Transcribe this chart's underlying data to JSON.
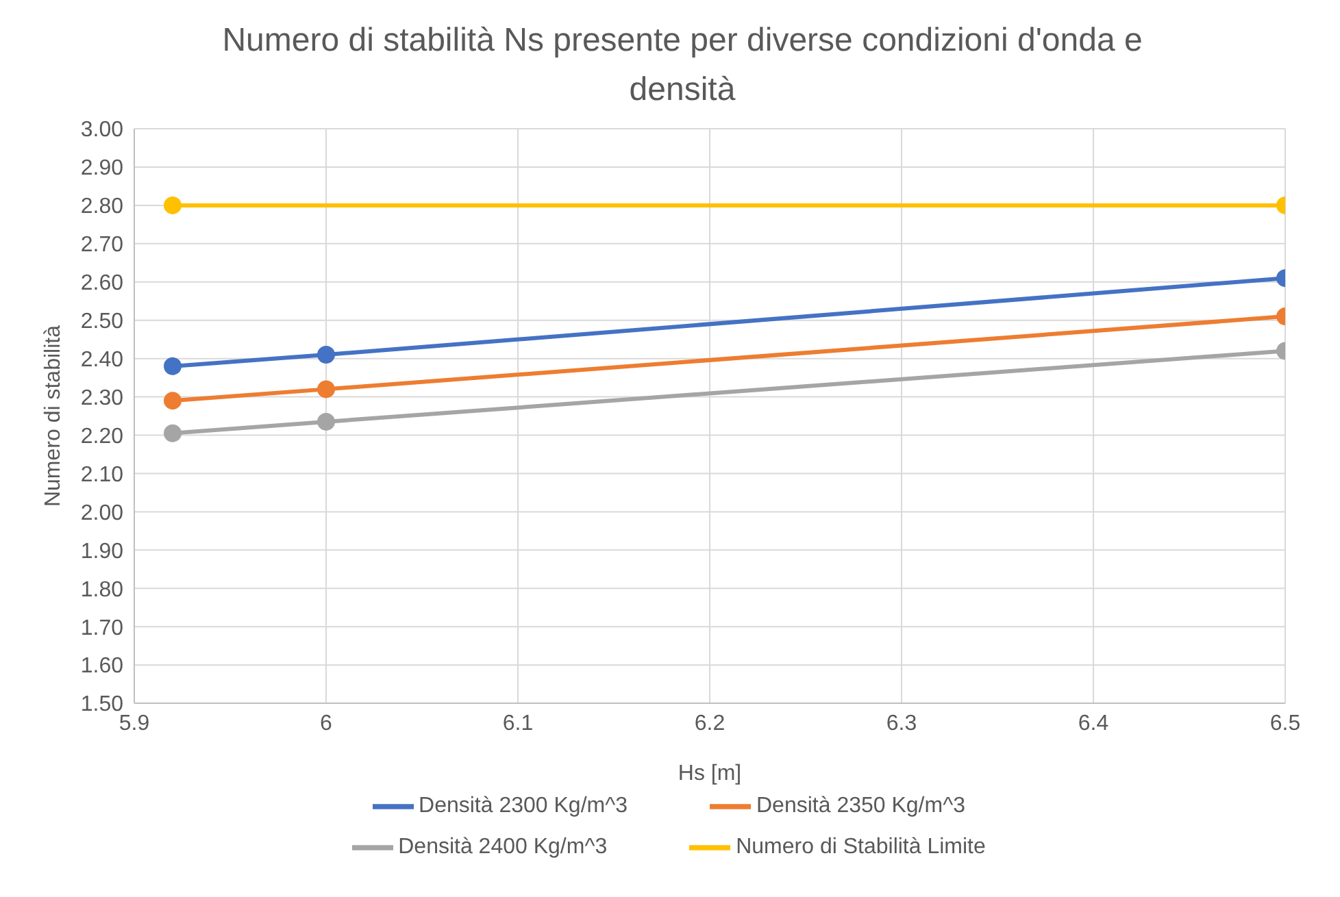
{
  "chart_data": {
    "type": "line",
    "title": "Numero di stabilità Ns presente per diverse condizioni d'onda e densità",
    "xlabel": "Hs [m]",
    "ylabel": "Numero di stabilità",
    "x": [
      5.92,
      6,
      6.5
    ],
    "series": [
      {
        "name": "Densità 2300 Kg/m^3",
        "color": "#4472c4",
        "values": [
          2.38,
          2.41,
          2.61
        ]
      },
      {
        "name": "Densità 2350 Kg/m^3",
        "color": "#ed7d31",
        "values": [
          2.29,
          2.32,
          2.51
        ]
      },
      {
        "name": "Densità 2400 Kg/m^3",
        "color": "#a5a5a5",
        "values": [
          2.205,
          2.235,
          2.42
        ]
      },
      {
        "name": "Numero di Stabilità Limite",
        "color": "#ffc000",
        "x": [
          5.92,
          6.5
        ],
        "values": [
          2.8,
          2.8
        ]
      }
    ],
    "xlim": [
      5.9,
      6.5
    ],
    "xticks": [
      5.9,
      6,
      6.1,
      6.2,
      6.3,
      6.4,
      6.5
    ],
    "ylim": [
      1.5,
      3
    ],
    "yticks": [
      {
        "value": 1.5,
        "label": "1.50"
      },
      {
        "value": 1.6,
        "label": "1.60"
      },
      {
        "value": 1.7,
        "label": "1.70"
      },
      {
        "value": 1.8,
        "label": "1.80"
      },
      {
        "value": 1.9,
        "label": "1.90"
      },
      {
        "value": 2,
        "label": "2.00"
      },
      {
        "value": 2.1,
        "label": "2.10"
      },
      {
        "value": 2.2,
        "label": "2.20"
      },
      {
        "value": 2.3,
        "label": "2.30"
      },
      {
        "value": 2.4,
        "label": "2.40"
      },
      {
        "value": 2.5,
        "label": "2.50"
      },
      {
        "value": 2.6,
        "label": "2.60"
      },
      {
        "value": 2.7,
        "label": "2.70"
      },
      {
        "value": 2.8,
        "label": "2.80"
      },
      {
        "value": 2.9,
        "label": "2.90"
      },
      {
        "value": 3,
        "label": "3.00"
      }
    ],
    "grid": true,
    "legend": "bottom",
    "marker": "circle",
    "line_style": "solid"
  }
}
